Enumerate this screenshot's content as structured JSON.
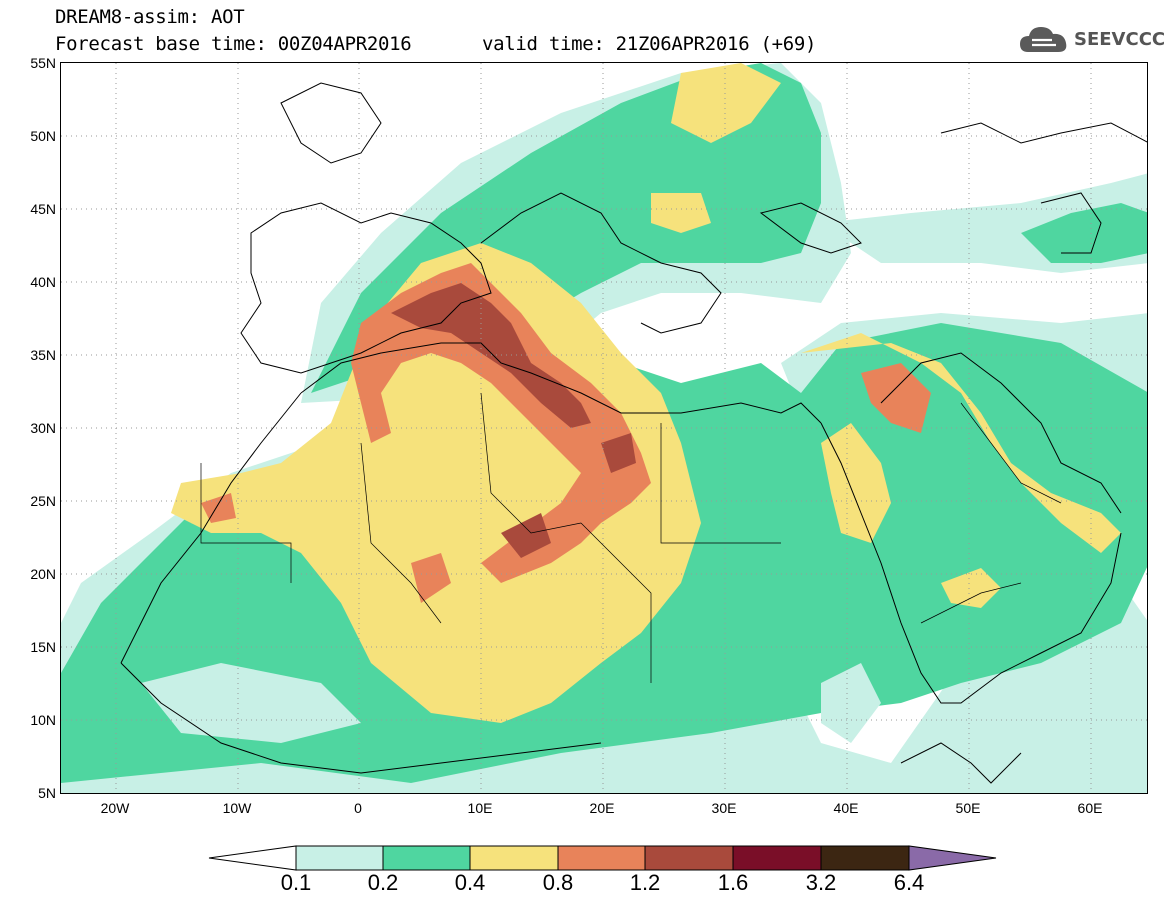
{
  "title": {
    "line1": "DREAM8-assim: AOT",
    "line2": "Forecast base time: 00Z04APR2016",
    "valid": "valid time: 21Z06APR2016 (+69)"
  },
  "logo": {
    "icon": "cloud-icon",
    "text": "SEEVCCC"
  },
  "map": {
    "lat_labels": [
      "55N",
      "50N",
      "45N",
      "40N",
      "35N",
      "30N",
      "25N",
      "20N",
      "15N",
      "10N",
      "5N"
    ],
    "lon_labels": [
      "20W",
      "10W",
      "0",
      "10E",
      "20E",
      "30E",
      "40E",
      "50E",
      "60E"
    ],
    "lat_range": [
      5,
      55
    ],
    "lon_range": [
      -25,
      65
    ],
    "grid": "dotted"
  },
  "legend": {
    "labels": [
      "0.1",
      "0.2",
      "0.4",
      "0.8",
      "1.2",
      "1.6",
      "3.2",
      "6.4"
    ],
    "colors": [
      "#ffffff",
      "#c8f0e6",
      "#4fd6a0",
      "#f6e27c",
      "#e8835a",
      "#a94a3c",
      "#7a0e28",
      "#3c2612",
      "#8a6aa8"
    ]
  }
}
